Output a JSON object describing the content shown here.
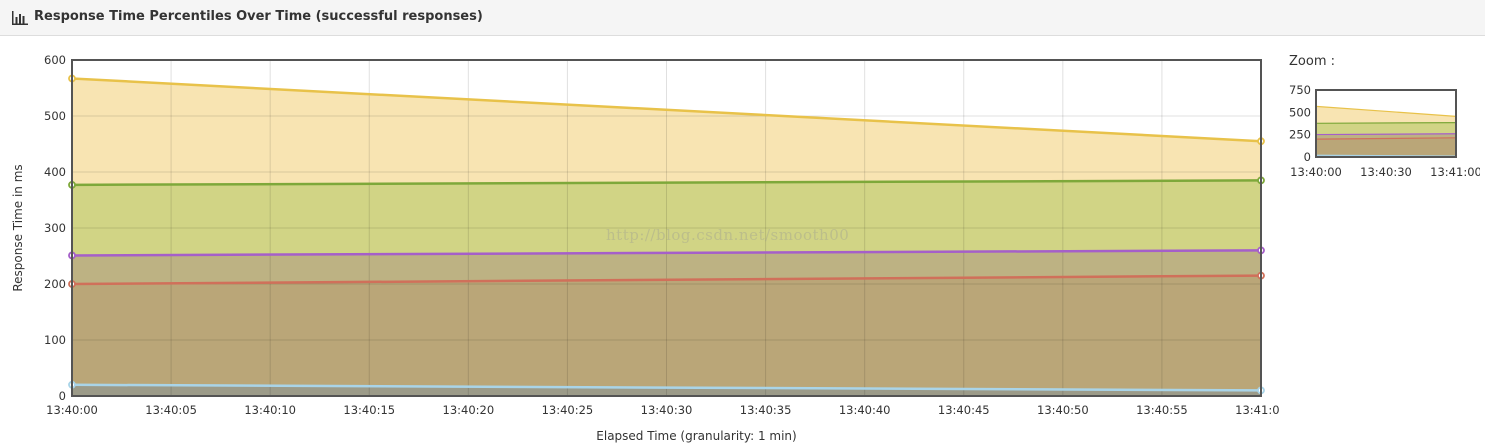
{
  "header": {
    "title": "Response Time Percentiles Over Time (successful responses)",
    "icon": "bar-chart-icon"
  },
  "zoom": {
    "label": "Zoom :",
    "y_ticks": [
      0,
      250,
      500,
      750
    ],
    "x_ticks": [
      "13:40:00",
      "13:40:30",
      "13:41:00"
    ],
    "ylim": [
      0,
      750
    ]
  },
  "watermark": "http://blog.csdn.net/smooth00",
  "chart_data": {
    "type": "area",
    "title": "Response Time Percentiles Over Time (successful responses)",
    "xlabel": "Elapsed Time (granularity: 1 min)",
    "ylabel": "Response Time in ms",
    "ylim": [
      0,
      600
    ],
    "y_ticks": [
      0,
      100,
      200,
      300,
      400,
      500,
      600
    ],
    "x_ticks": [
      "13:40:00",
      "13:40:05",
      "13:40:10",
      "13:40:15",
      "13:40:20",
      "13:40:25",
      "13:40:30",
      "13:40:35",
      "13:40:40",
      "13:40:45",
      "13:40:50",
      "13:40:55",
      "13:41:00"
    ],
    "x": [
      "13:40:00",
      "13:41:00"
    ],
    "grid": true,
    "series": [
      {
        "values": [
          567,
          455
        ],
        "line_color": "#e8c24a",
        "fill_color": "#f8e3ae"
      },
      {
        "values": [
          377,
          385
        ],
        "line_color": "#7ea83a",
        "fill_color": "#cfd383"
      },
      {
        "values": [
          251,
          260
        ],
        "line_color": "#a55fc9",
        "fill_color": "#bcb083"
      },
      {
        "values": [
          200,
          215
        ],
        "line_color": "#d0705a",
        "fill_color": "#b9a577"
      },
      {
        "values": [
          20,
          10
        ],
        "line_color": "#a9d4e8",
        "fill_color": "#9a9a8a"
      }
    ]
  }
}
